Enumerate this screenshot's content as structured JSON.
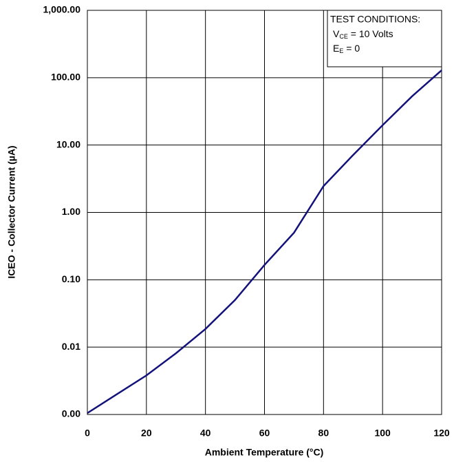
{
  "chart_data": {
    "type": "line",
    "xlabel": "Ambient Temperature (°C)",
    "ylabel": "ICEO - Collector Current (µA)",
    "annotation": {
      "title": "TEST CONDITIONS:",
      "lines": [
        {
          "text": "V",
          "sub": "CE",
          "rest": " = 10 Volts"
        },
        {
          "text": "E",
          "sub": "E",
          "rest": " = 0"
        }
      ]
    },
    "x": [
      0,
      10,
      20,
      30,
      40,
      50,
      60,
      70,
      80,
      90,
      100,
      110,
      120
    ],
    "series": [
      {
        "color": "#12127a",
        "values": [
          0.00105,
          0.002,
          0.0038,
          0.0081,
          0.0186,
          0.05,
          0.166,
          0.5,
          2.46,
          7.1,
          19.7,
          53,
          129
        ]
      }
    ],
    "xlim": [
      0,
      120
    ],
    "xticks": [
      0,
      20,
      40,
      60,
      80,
      100,
      120
    ],
    "ylim": [
      0.001,
      1000
    ],
    "ylog": true,
    "yticks": [
      {
        "value": 0.001,
        "label": "0.00"
      },
      {
        "value": 0.01,
        "label": "0.01"
      },
      {
        "value": 0.1,
        "label": "0.10"
      },
      {
        "value": 1,
        "label": "1.00"
      },
      {
        "value": 10,
        "label": "10.00"
      },
      {
        "value": 100,
        "label": "100.00"
      },
      {
        "value": 1000,
        "label": "1,000.00"
      }
    ],
    "grid": true
  }
}
